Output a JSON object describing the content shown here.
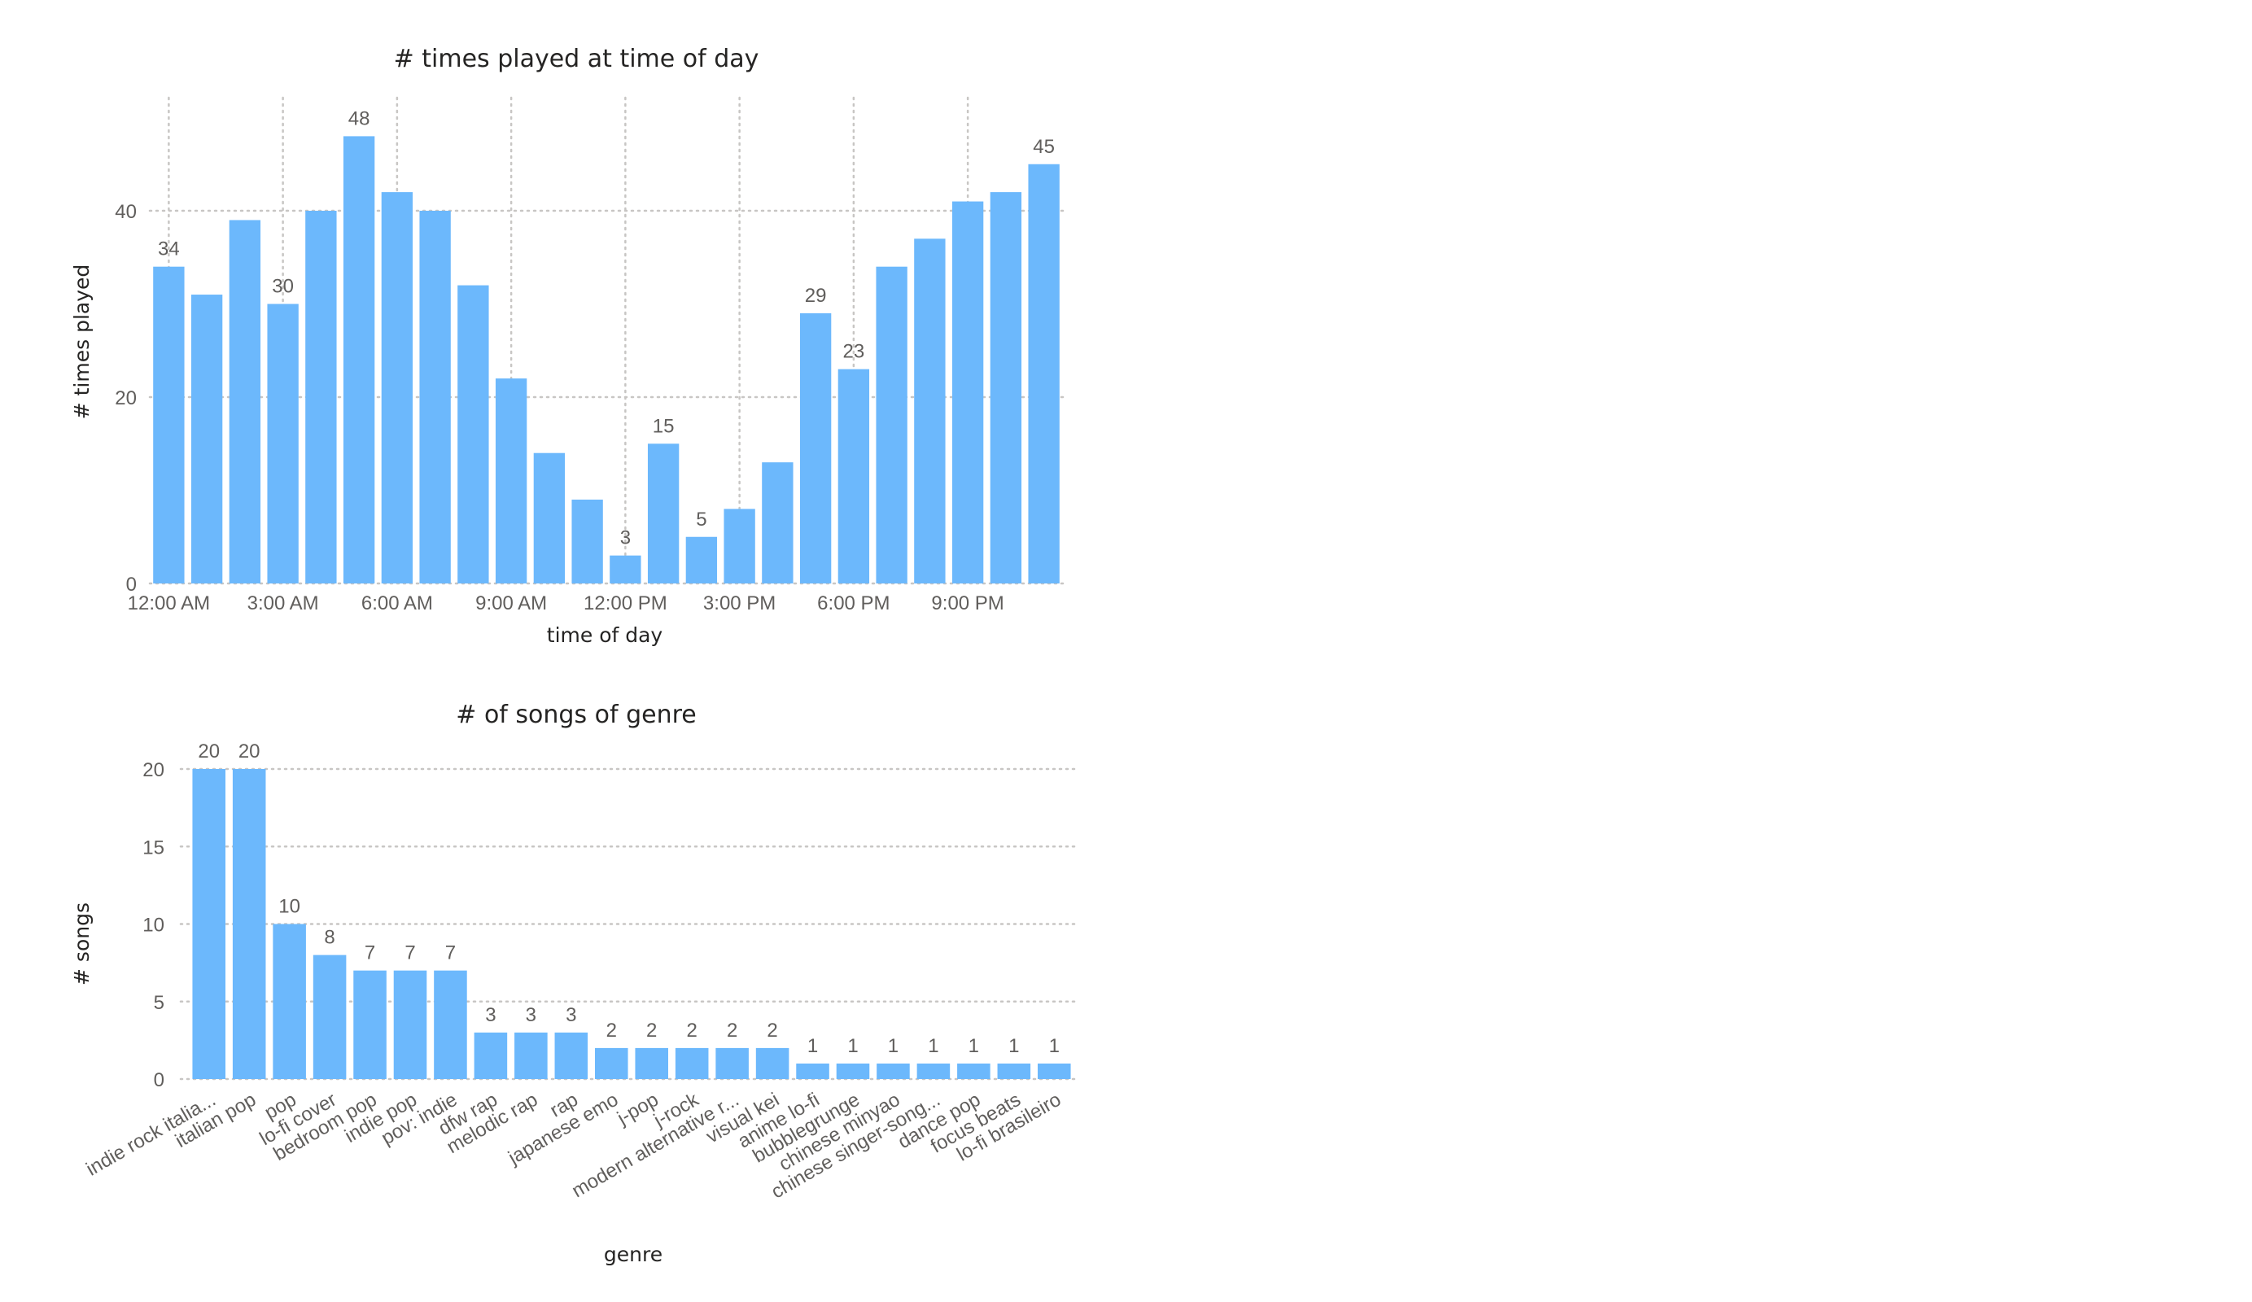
{
  "colors": {
    "bar": "#6CB8FC",
    "gridline": "#C8C6C4",
    "text_dark": "#252423",
    "text_light": "#605E5C",
    "background": "#FFFFFF"
  },
  "chart_data": [
    {
      "type": "bar",
      "title": "# times played at time of day",
      "xlabel": "time of day",
      "ylabel": "# times played",
      "ylim": [
        0,
        52
      ],
      "y_ticks": [
        0,
        20,
        40
      ],
      "x_tick_labels": [
        "12:00 AM",
        "3:00 AM",
        "6:00 AM",
        "9:00 AM",
        "12:00 PM",
        "3:00 PM",
        "6:00 PM",
        "9:00 PM"
      ],
      "grid": true,
      "categories": [
        "0",
        "1",
        "2",
        "3",
        "4",
        "5",
        "6",
        "7",
        "8",
        "9",
        "10",
        "11",
        "12",
        "13",
        "14",
        "15",
        "16",
        "17",
        "18",
        "19",
        "20",
        "21",
        "22",
        "23"
      ],
      "values": [
        34,
        31,
        39,
        30,
        40,
        48,
        42,
        40,
        32,
        22,
        14,
        9,
        3,
        15,
        5,
        8,
        13,
        29,
        23,
        34,
        37,
        41,
        42,
        45
      ],
      "data_labels_shown": [
        34,
        null,
        null,
        30,
        null,
        48,
        null,
        null,
        null,
        null,
        null,
        null,
        3,
        15,
        5,
        null,
        null,
        29,
        23,
        null,
        null,
        null,
        null,
        45
      ]
    },
    {
      "type": "bar",
      "title": "# of songs of genre",
      "xlabel": "genre",
      "ylabel": "# songs",
      "ylim": [
        0,
        20
      ],
      "y_ticks": [
        0,
        5,
        10,
        15,
        20
      ],
      "grid": true,
      "categories": [
        "indie rock italia...",
        "italian pop",
        "pop",
        "lo-fi cover",
        "bedroom pop",
        "indie pop",
        "pov: indie",
        "dfw rap",
        "melodic rap",
        "rap",
        "japanese emo",
        "j-pop",
        "j-rock",
        "modern alternative r...",
        "visual kei",
        "anime lo-fi",
        "bubblegrunge",
        "chinese minyao",
        "chinese singer-song...",
        "dance pop",
        "focus beats",
        "lo-fi brasileiro"
      ],
      "values": [
        20,
        20,
        10,
        8,
        7,
        7,
        7,
        3,
        3,
        3,
        2,
        2,
        2,
        2,
        2,
        1,
        1,
        1,
        1,
        1,
        1,
        1
      ]
    }
  ]
}
